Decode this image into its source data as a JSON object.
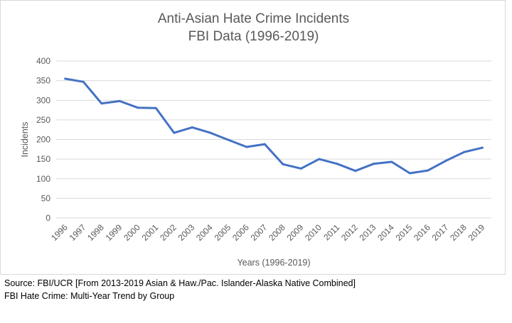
{
  "chart_data": {
    "type": "line",
    "title_lines": [
      "Anti-Asian Hate Crime Incidents",
      "FBI Data (1996-2019)"
    ],
    "xlabel": "Years (1996-2019)",
    "ylabel": "Incidents",
    "categories": [
      "1996",
      "1997",
      "1998",
      "1999",
      "2000",
      "2001",
      "2002",
      "2003",
      "2004",
      "2005",
      "2006",
      "2007",
      "2008",
      "2009",
      "2010",
      "2011",
      "2012",
      "2013",
      "2014",
      "2015",
      "2016",
      "2017",
      "2018",
      "2019"
    ],
    "series": [
      {
        "values": [
          355,
          347,
          292,
          298,
          281,
          280,
          217,
          231,
          217,
          199,
          181,
          188,
          137,
          126,
          150,
          138,
          120,
          138,
          143,
          114,
          121,
          146,
          168,
          179
        ]
      }
    ],
    "ylim": [
      0,
      400
    ],
    "yticks": [
      0,
      50,
      100,
      150,
      200,
      250,
      300,
      350,
      400
    ],
    "grid": true,
    "legend": "none",
    "line_color": "#4472c4",
    "grid_color": "#d9d9d9"
  },
  "footnotes": [
    "Source: FBI/UCR [From 2013-2019 Asian & Haw./Pac. Islander-Alaska Native Combined]",
    "FBI Hate Crime: Multi-Year Trend by Group"
  ]
}
